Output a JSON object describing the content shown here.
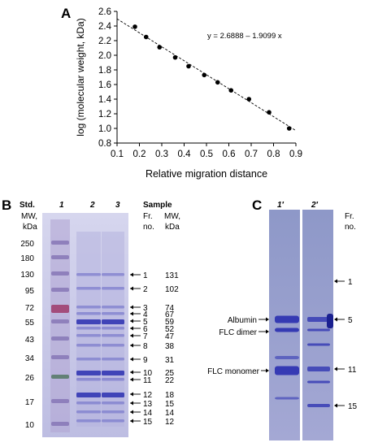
{
  "panelA": {
    "letter": "A",
    "equation": "y = 2.6888 – 1.9099 x",
    "ylabel": "log (molecular weight, kDa)",
    "xlabel": "Relative migration distance",
    "chart_data": {
      "type": "scatter",
      "xlim": [
        0.1,
        0.9
      ],
      "ylim": [
        0.8,
        2.6
      ],
      "x_ticks": [
        "0.1",
        "0.2",
        "0.3",
        "0.4",
        "0.5",
        "0.6",
        "0.7",
        "0.8",
        "0.9"
      ],
      "y_ticks": [
        "0.8",
        "1.0",
        "1.2",
        "1.4",
        "1.6",
        "1.8",
        "2.0",
        "2.2",
        "2.4",
        "2.6"
      ],
      "points": [
        {
          "x": 0.18,
          "y": 2.39
        },
        {
          "x": 0.23,
          "y": 2.25
        },
        {
          "x": 0.29,
          "y": 2.11
        },
        {
          "x": 0.36,
          "y": 1.97
        },
        {
          "x": 0.42,
          "y": 1.85
        },
        {
          "x": 0.49,
          "y": 1.73
        },
        {
          "x": 0.55,
          "y": 1.63
        },
        {
          "x": 0.61,
          "y": 1.52
        },
        {
          "x": 0.69,
          "y": 1.4
        },
        {
          "x": 0.78,
          "y": 1.22
        },
        {
          "x": 0.87,
          "y": 1.0
        }
      ],
      "fit": {
        "intercept": 2.6888,
        "slope": -1.9099,
        "x_range": [
          0.1,
          0.9
        ]
      },
      "grid": false,
      "fit_style": "dashed"
    }
  },
  "panelB": {
    "letter": "B",
    "std_label": "Std.",
    "mw_label_1": "MW,",
    "mw_label_2": "kDa",
    "lane_1": "1",
    "lane_2": "2",
    "lane_3": "3",
    "sample_label": "Sample",
    "fr_label_1": "Fr.",
    "fr_label_2": "no.",
    "smw_label_1": "MW,",
    "smw_label_2": "kDa",
    "std_markers": [
      "250",
      "180",
      "130",
      "95",
      "72",
      "55",
      "43",
      "34",
      "26",
      "17",
      "10"
    ],
    "fractions": [
      {
        "fr": "1",
        "mw": "131"
      },
      {
        "fr": "2",
        "mw": "102"
      },
      {
        "fr": "3",
        "mw": "74"
      },
      {
        "fr": "4",
        "mw": "67"
      },
      {
        "fr": "5",
        "mw": "59"
      },
      {
        "fr": "6",
        "mw": "52"
      },
      {
        "fr": "7",
        "mw": "47"
      },
      {
        "fr": "8",
        "mw": "38"
      },
      {
        "fr": "9",
        "mw": "31"
      },
      {
        "fr": "10",
        "mw": "25"
      },
      {
        "fr": "11",
        "mw": "22"
      },
      {
        "fr": "12",
        "mw": "18"
      },
      {
        "fr": "13",
        "mw": "15"
      },
      {
        "fr": "14",
        "mw": "14"
      },
      {
        "fr": "15",
        "mw": "12"
      }
    ]
  },
  "panelC": {
    "letter": "C",
    "lane_1": "1′",
    "lane_2": "2′",
    "fr_label_1": "Fr.",
    "fr_label_2": "no.",
    "band_labels": [
      "Albumin",
      "FLC dimer",
      "FLC monomer"
    ],
    "fractions": [
      "1",
      "5",
      "11",
      "15"
    ]
  },
  "colors": {
    "gel_background": "#c8c8e6",
    "band_dark": "#2a2fb0",
    "band_light": "#6e6ec8",
    "marker_lane": "#8a7ab8"
  }
}
